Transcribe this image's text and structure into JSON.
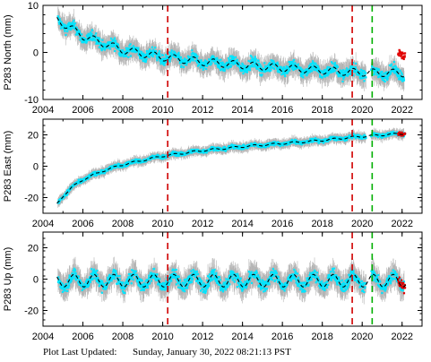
{
  "chart_data": [
    {
      "type": "scatter",
      "ylabel": "P283 North (mm)",
      "xlim": [
        2004.0,
        2023.0
      ],
      "ylim": [
        -10,
        10
      ],
      "yticks": [
        -10,
        0,
        10
      ],
      "xticks": [
        2004,
        2006,
        2008,
        2010,
        2012,
        2014,
        2016,
        2018,
        2020,
        2022
      ],
      "vlines": [
        {
          "x": 2010.25,
          "color": "#d00000"
        },
        {
          "x": 2019.5,
          "color": "#d00000"
        },
        {
          "x": 2020.5,
          "color": "#00b000"
        }
      ],
      "model_trend": {
        "x": [
          2004.7,
          2006.0,
          2008.0,
          2010.0,
          2012.0,
          2014.0,
          2016.0,
          2018.0,
          2019.5,
          2020.5,
          2022.2
        ],
        "y": [
          7.0,
          3.5,
          0.5,
          -1.0,
          -2.0,
          -2.7,
          -3.3,
          -3.8,
          -4.2,
          -4.3,
          -4.4
        ]
      },
      "seasonal_amplitude": 0.8
    },
    {
      "type": "scatter",
      "ylabel": "P283 East (mm)",
      "xlim": [
        2004.0,
        2023.0
      ],
      "ylim": [
        -30,
        30
      ],
      "yticks": [
        -20,
        0,
        20
      ],
      "xticks": [
        2004,
        2006,
        2008,
        2010,
        2012,
        2014,
        2016,
        2018,
        2020,
        2022
      ],
      "vlines": [
        {
          "x": 2010.25,
          "color": "#d00000"
        },
        {
          "x": 2019.5,
          "color": "#d00000"
        },
        {
          "x": 2020.5,
          "color": "#00b000"
        }
      ],
      "model_trend": {
        "x": [
          2004.7,
          2005.0,
          2005.5,
          2006.0,
          2007.0,
          2008.0,
          2010.0,
          2012.0,
          2014.0,
          2016.0,
          2018.0,
          2019.5,
          2020.5,
          2022.2
        ],
        "y": [
          -24.0,
          -19.0,
          -13.0,
          -8.5,
          -3.0,
          1.0,
          6.5,
          10.0,
          12.5,
          14.5,
          16.5,
          18.5,
          19.5,
          21.0
        ]
      },
      "seasonal_amplitude": 0.6
    },
    {
      "type": "scatter",
      "ylabel": "P283 Up (mm)",
      "xlim": [
        2004.0,
        2023.0
      ],
      "ylim": [
        -30,
        30
      ],
      "yticks": [
        -20,
        0,
        20
      ],
      "xticks": [
        2004,
        2006,
        2008,
        2010,
        2012,
        2014,
        2016,
        2018,
        2020,
        2022
      ],
      "vlines": [
        {
          "x": 2010.25,
          "color": "#d00000"
        },
        {
          "x": 2019.5,
          "color": "#d00000"
        },
        {
          "x": 2020.5,
          "color": "#00b000"
        }
      ],
      "model_trend": {
        "x": [
          2004.7,
          2022.2
        ],
        "y": [
          -1.0,
          -1.0
        ]
      },
      "seasonal_amplitude": 4.0
    }
  ],
  "colors": {
    "data_points": "#00e5ff",
    "error_bars": "#b4b4b4",
    "model": "#000000",
    "recent_points": "#e00000"
  },
  "footer": {
    "label": "Plot Last Updated:",
    "timestamp": "Sunday, January 30, 2022 08:21:13 PST"
  }
}
